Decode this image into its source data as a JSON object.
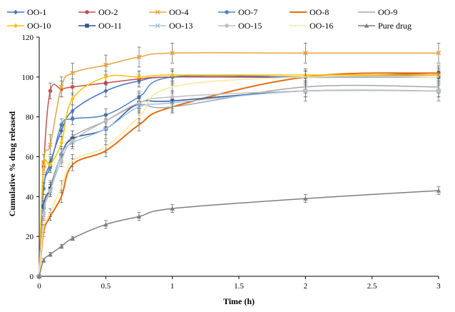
{
  "chart_data": {
    "type": "line",
    "title": "",
    "xlabel": "Time (h)",
    "ylabel": "Cumulative % drug released",
    "xlim": [
      0,
      3
    ],
    "ylim": [
      0,
      120
    ],
    "xticks": [
      "0",
      "0.5",
      "1",
      "1.5",
      "2",
      "2.5",
      "3"
    ],
    "yticks": [
      "0",
      "20",
      "40",
      "60",
      "80",
      "100",
      "120"
    ],
    "x": [
      0,
      0.033,
      0.083,
      0.167,
      0.25,
      0.5,
      0.75,
      1,
      2,
      3
    ],
    "legend_position": "top",
    "series": [
      {
        "name": "OO-1",
        "color": "#4472C4",
        "marker": "diamond",
        "values": [
          0,
          44,
          57,
          73,
          83,
          93,
          98,
          100,
          100,
          101
        ],
        "errors": [
          0,
          3,
          3,
          3,
          3,
          3,
          3,
          3,
          3,
          3
        ]
      },
      {
        "name": "OO-2",
        "color": "#C0504D",
        "marker": "circle",
        "values": [
          0,
          55,
          93,
          94,
          95,
          97,
          99,
          100,
          100,
          102
        ],
        "errors": [
          0,
          3,
          4,
          4,
          4,
          4,
          4,
          4,
          4,
          4
        ]
      },
      {
        "name": "OO-4",
        "color": "#E8A33C",
        "marker": "x",
        "values": [
          0,
          57,
          66,
          95,
          102,
          106,
          110,
          112,
          112,
          112
        ],
        "errors": [
          0,
          4,
          5,
          5,
          5,
          5,
          5,
          5,
          5,
          5
        ]
      },
      {
        "name": "OO-7",
        "color": "#4F81BD",
        "marker": "circle",
        "values": [
          0,
          44,
          55,
          76,
          79,
          81,
          90,
          100,
          100,
          100
        ],
        "errors": [
          0,
          3,
          3,
          3,
          3,
          3,
          3,
          3,
          3,
          3
        ]
      },
      {
        "name": "OO-8",
        "color": "#E46C0A",
        "marker": "none",
        "values": [
          0,
          22,
          30,
          40,
          56,
          63,
          76,
          85,
          100,
          102
        ],
        "errors": [
          0,
          2,
          2,
          3,
          3,
          3,
          3,
          3,
          3,
          3
        ]
      },
      {
        "name": "OO-9",
        "color": "#A6A6A6",
        "marker": "none",
        "values": [
          0,
          32,
          45,
          61,
          70,
          78,
          86,
          85,
          95,
          95
        ],
        "errors": [
          0,
          3,
          3,
          3,
          3,
          3,
          3,
          3,
          3,
          3
        ]
      },
      {
        "name": "OO-10",
        "color": "#FFC000",
        "marker": "diamond",
        "values": [
          0,
          54,
          56,
          67,
          89,
          100,
          100,
          101,
          101,
          101
        ],
        "errors": [
          0,
          3,
          3,
          3,
          3,
          3,
          3,
          3,
          3,
          3
        ]
      },
      {
        "name": "OO-11",
        "color": "#2F5597",
        "marker": "square",
        "values": [
          0,
          35,
          44,
          61,
          69,
          74,
          87,
          88,
          93,
          93
        ],
        "errors": [
          0,
          3,
          3,
          4,
          4,
          5,
          5,
          5,
          5,
          5
        ]
      },
      {
        "name": "OO-13",
        "color": "#9DC3E6",
        "marker": "x",
        "values": [
          0,
          33,
          43,
          61,
          67,
          74,
          85,
          87,
          93,
          93
        ],
        "errors": [
          0,
          3,
          3,
          3,
          3,
          3,
          3,
          3,
          3,
          3
        ]
      },
      {
        "name": "OO-15",
        "color": "#BFBFBF",
        "marker": "circle",
        "values": [
          0,
          31,
          43,
          58,
          68,
          78,
          87,
          90,
          93,
          93
        ],
        "errors": [
          0,
          3,
          3,
          3,
          3,
          3,
          3,
          3,
          3,
          3
        ]
      },
      {
        "name": "OO-16",
        "color": "#FFE699",
        "marker": "none",
        "values": [
          0,
          24,
          32,
          45,
          58,
          65,
          80,
          95,
          100,
          100
        ],
        "errors": [
          0,
          2,
          2,
          3,
          3,
          3,
          3,
          3,
          3,
          3
        ]
      },
      {
        "name": "Pure drug",
        "color": "#7F7F7F",
        "marker": "triangle",
        "values": [
          0,
          8,
          11,
          15,
          19,
          26,
          30,
          34,
          39,
          43
        ],
        "errors": [
          0,
          1,
          1,
          1,
          1,
          2,
          2,
          2,
          2,
          2
        ]
      }
    ]
  }
}
